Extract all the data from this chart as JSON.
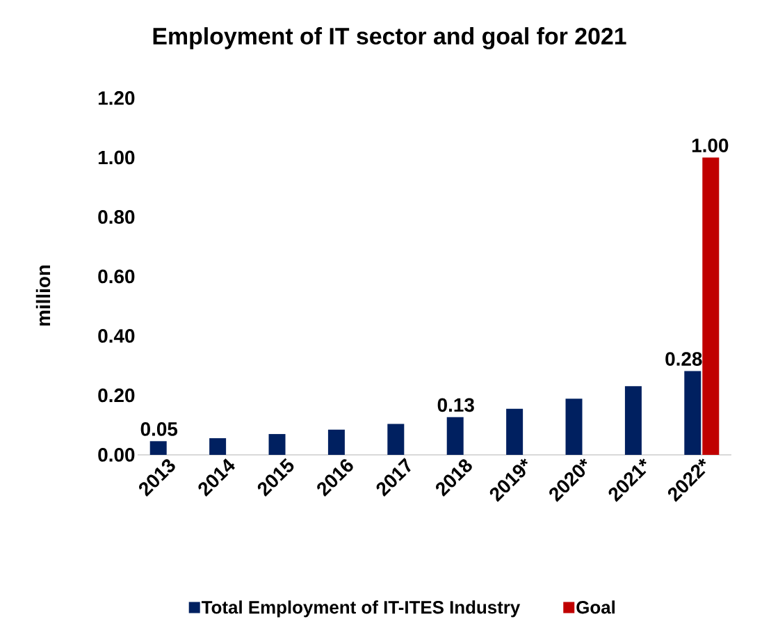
{
  "chart_data": {
    "type": "bar",
    "title": "Employment of IT sector and goal for 2021",
    "ylabel": "million",
    "categories": [
      "2013",
      "2014",
      "2015",
      "2016",
      "2017",
      "2018",
      "2019*",
      "2020*",
      "2021*",
      "2022*"
    ],
    "series": [
      {
        "name": "Total Employment of IT-ITES Industry",
        "color": "#002060",
        "values": [
          0.046,
          0.056,
          0.07,
          0.085,
          0.104,
          0.127,
          0.155,
          0.189,
          0.231,
          0.282
        ],
        "value_labels": [
          "0.05",
          null,
          null,
          null,
          null,
          "0.13",
          null,
          null,
          null,
          "0.28"
        ]
      },
      {
        "name": "Goal",
        "color": "#c00000",
        "values": [
          null,
          null,
          null,
          null,
          null,
          null,
          null,
          null,
          null,
          1.0
        ],
        "value_labels": [
          null,
          null,
          null,
          null,
          null,
          null,
          null,
          null,
          null,
          "1.00"
        ]
      }
    ],
    "ylim": [
      0,
      1.2
    ],
    "yticks": [
      {
        "value": 0,
        "label": "0.00"
      },
      {
        "value": 0.2,
        "label": "0.20"
      },
      {
        "value": 0.4,
        "label": "0.40"
      },
      {
        "value": 0.6,
        "label": "0.60"
      },
      {
        "value": 0.8,
        "label": "0.80"
      },
      {
        "value": 1.0,
        "label": "1.00"
      },
      {
        "value": 1.2,
        "label": "1.20"
      }
    ],
    "legend": "bottom"
  }
}
